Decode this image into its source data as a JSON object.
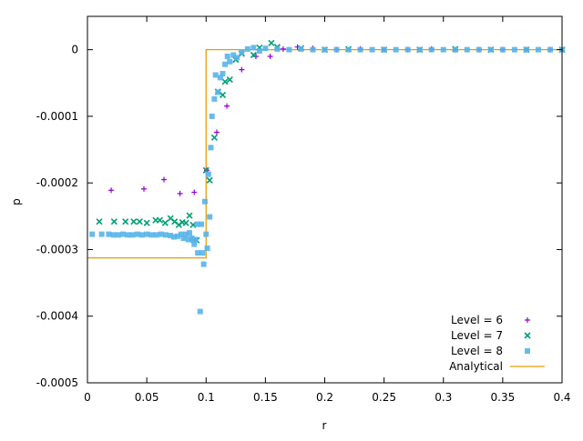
{
  "chart_data": {
    "type": "scatter",
    "title": "",
    "xlabel": "r",
    "ylabel": "p",
    "xlim": [
      0,
      0.4
    ],
    "ylim": [
      -0.0005,
      5e-05
    ],
    "xticks": [
      "0",
      "0.05",
      "0.1",
      "0.15",
      "0.2",
      "0.25",
      "0.3",
      "0.35",
      "0.4"
    ],
    "xtick_values": [
      0,
      0.05,
      0.1,
      0.15,
      0.2,
      0.25,
      0.3,
      0.35,
      0.4
    ],
    "yticks": [
      "0",
      "-0.0001",
      "-0.0002",
      "-0.0003",
      "-0.0004",
      "-0.0005"
    ],
    "ytick_values": [
      0,
      -0.0001,
      -0.0002,
      -0.0003,
      -0.0004,
      -0.0005
    ],
    "grid": false,
    "legend_position": "bottom-right",
    "series": [
      {
        "name": "Level = 6",
        "marker": "plus",
        "color": "#9400d3",
        "points": [
          [
            0.02,
            -0.000211
          ],
          [
            0.0476,
            -0.000209
          ],
          [
            0.0645,
            -0.000195
          ],
          [
            0.078,
            -0.000216
          ],
          [
            0.09,
            -0.000214
          ],
          [
            0.1006,
            -0.000181
          ],
          [
            0.109,
            -0.000124
          ],
          [
            0.1175,
            -8.46e-05
          ],
          [
            0.13,
            -3e-05
          ],
          [
            0.142,
            -1e-05
          ],
          [
            0.154,
            -1e-05
          ],
          [
            0.165,
            1e-06
          ],
          [
            0.177,
            4e-06
          ],
          [
            0.19,
            2e-06
          ],
          [
            0.21,
            0
          ],
          [
            0.23,
            1e-06
          ],
          [
            0.25,
            0
          ],
          [
            0.27,
            0
          ],
          [
            0.29,
            1e-06
          ],
          [
            0.31,
            0
          ],
          [
            0.33,
            0
          ],
          [
            0.35,
            0
          ],
          [
            0.37,
            0
          ],
          [
            0.39,
            0
          ]
        ]
      },
      {
        "name": "Level = 7",
        "marker": "cross",
        "color": "#009e73",
        "points": [
          [
            0.01,
            -0.000258
          ],
          [
            0.0225,
            -0.000258
          ],
          [
            0.032,
            -0.000258
          ],
          [
            0.039,
            -0.000258
          ],
          [
            0.044,
            -0.000258
          ],
          [
            0.05,
            -0.00026
          ],
          [
            0.0575,
            -0.000256
          ],
          [
            0.061,
            -0.000256
          ],
          [
            0.0655,
            -0.00026
          ],
          [
            0.07,
            -0.000253
          ],
          [
            0.0735,
            -0.000258
          ],
          [
            0.077,
            -0.000263
          ],
          [
            0.08,
            -0.000259
          ],
          [
            0.083,
            -0.00026
          ],
          [
            0.086,
            -0.000249
          ],
          [
            0.089,
            -0.000263
          ],
          [
            0.092,
            -0.000286
          ],
          [
            0.1,
            -0.000181
          ],
          [
            0.103,
            -0.000196
          ],
          [
            0.107,
            -0.000132
          ],
          [
            0.11,
            -6.3e-05
          ],
          [
            0.114,
            -6.8e-05
          ],
          [
            0.116,
            -4.8e-05
          ],
          [
            0.12,
            -4.5e-05
          ],
          [
            0.125,
            -1.5e-05
          ],
          [
            0.13,
            -6e-06
          ],
          [
            0.14,
            -8e-06
          ],
          [
            0.145,
            3e-06
          ],
          [
            0.155,
            1e-05
          ],
          [
            0.16,
            4e-06
          ],
          [
            0.18,
            2e-06
          ],
          [
            0.2,
            0
          ],
          [
            0.22,
            1e-06
          ],
          [
            0.25,
            0
          ],
          [
            0.28,
            0
          ],
          [
            0.31,
            1e-06
          ],
          [
            0.34,
            0
          ],
          [
            0.37,
            0
          ],
          [
            0.4,
            0
          ]
        ]
      },
      {
        "name": "Level = 8",
        "marker": "square",
        "color": "#56b4e9",
        "points": [
          [
            0.004,
            -0.000277
          ],
          [
            0.012,
            -0.000277
          ],
          [
            0.018,
            -0.000277
          ],
          [
            0.022,
            -0.000278
          ],
          [
            0.026,
            -0.000278
          ],
          [
            0.03,
            -0.000277
          ],
          [
            0.034,
            -0.000278
          ],
          [
            0.038,
            -0.000278
          ],
          [
            0.042,
            -0.000277
          ],
          [
            0.046,
            -0.000278
          ],
          [
            0.05,
            -0.000277
          ],
          [
            0.054,
            -0.000278
          ],
          [
            0.058,
            -0.000278
          ],
          [
            0.062,
            -0.000277
          ],
          [
            0.066,
            -0.000278
          ],
          [
            0.07,
            -0.000279
          ],
          [
            0.073,
            -0.000281
          ],
          [
            0.076,
            -0.00028
          ],
          [
            0.079,
            -0.000277
          ],
          [
            0.081,
            -0.000283
          ],
          [
            0.083,
            -0.000277
          ],
          [
            0.085,
            -0.000285
          ],
          [
            0.086,
            -0.000275
          ],
          [
            0.088,
            -0.000283
          ],
          [
            0.089,
            -0.000286
          ],
          [
            0.09,
            -0.000292
          ],
          [
            0.091,
            -0.000285
          ],
          [
            0.0925,
            -0.000262
          ],
          [
            0.093,
            -0.000305
          ],
          [
            0.095,
            -0.000393
          ],
          [
            0.096,
            -0.000262
          ],
          [
            0.097,
            -0.000305
          ],
          [
            0.098,
            -0.000322
          ],
          [
            0.099,
            -0.000228
          ],
          [
            0.1,
            -0.000277
          ],
          [
            0.101,
            -0.000298
          ],
          [
            0.102,
            -0.000187
          ],
          [
            0.103,
            -0.000251
          ],
          [
            0.104,
            -0.000147
          ],
          [
            0.105,
            -0.0001
          ],
          [
            0.107,
            -7.4e-05
          ],
          [
            0.108,
            -3.8e-05
          ],
          [
            0.11,
            -6.4e-05
          ],
          [
            0.112,
            -4.2e-05
          ],
          [
            0.114,
            -3.6e-05
          ],
          [
            0.116,
            -2.2e-05
          ],
          [
            0.118,
            -1e-05
          ],
          [
            0.12,
            -1.8e-05
          ],
          [
            0.123,
            -8e-06
          ],
          [
            0.126,
            -1.2e-05
          ],
          [
            0.13,
            -4e-06
          ],
          [
            0.135,
            1e-06
          ],
          [
            0.14,
            3e-06
          ],
          [
            0.145,
            -2e-06
          ],
          [
            0.15,
            2e-06
          ],
          [
            0.16,
            1e-06
          ],
          [
            0.17,
            0
          ],
          [
            0.18,
            1e-06
          ],
          [
            0.19,
            0
          ],
          [
            0.2,
            0
          ],
          [
            0.21,
            0
          ],
          [
            0.22,
            0
          ],
          [
            0.23,
            0
          ],
          [
            0.24,
            0
          ],
          [
            0.25,
            0
          ],
          [
            0.26,
            0
          ],
          [
            0.27,
            0
          ],
          [
            0.28,
            0
          ],
          [
            0.29,
            0
          ],
          [
            0.3,
            0
          ],
          [
            0.31,
            0
          ],
          [
            0.32,
            0
          ],
          [
            0.33,
            0
          ],
          [
            0.34,
            0
          ],
          [
            0.35,
            0
          ],
          [
            0.36,
            0
          ],
          [
            0.37,
            0
          ],
          [
            0.38,
            0
          ],
          [
            0.39,
            0
          ],
          [
            0.4,
            0
          ]
        ]
      },
      {
        "name": "Analytical",
        "marker": "line",
        "color": "#e69f00",
        "points": [
          [
            0,
            -0.0003125
          ],
          [
            0.1,
            -0.0003125
          ],
          [
            0.1,
            0
          ],
          [
            0.4,
            0
          ]
        ]
      }
    ]
  }
}
